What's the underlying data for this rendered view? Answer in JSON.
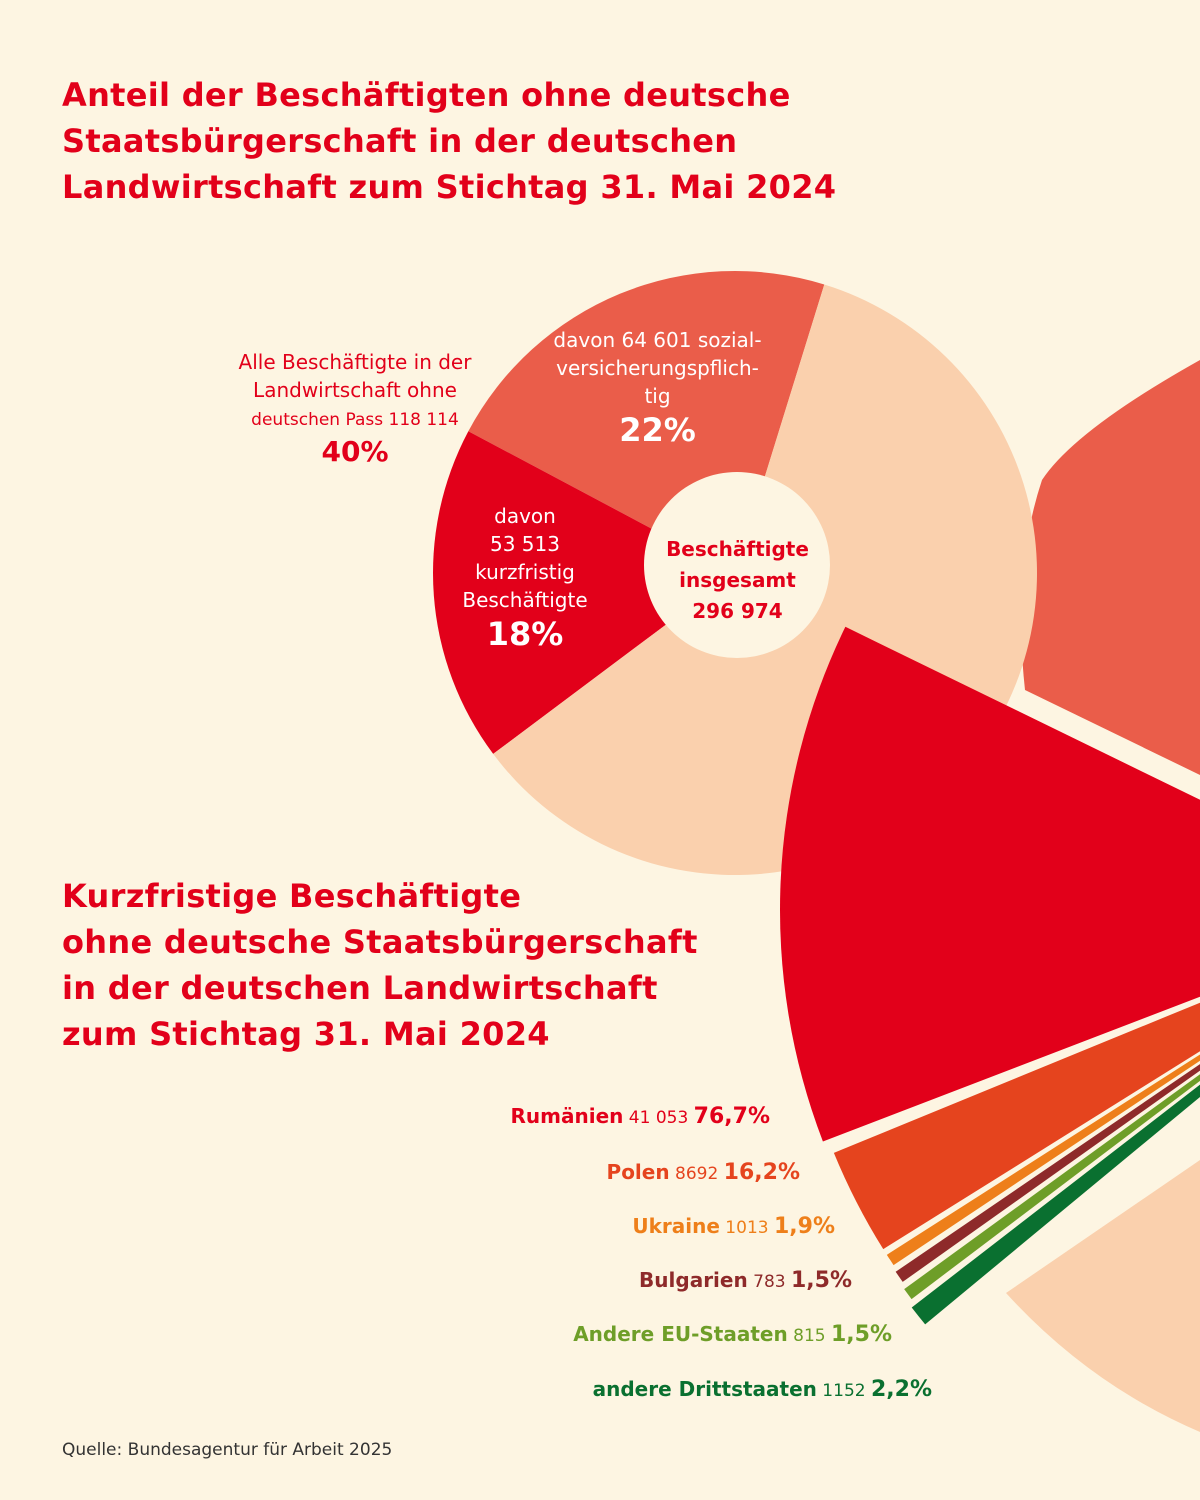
{
  "title_top": [
    "Anteil der Beschäftigten ohne deutsche",
    "Staatsbürgerschaft in der deutschen",
    "Landwirtschaft zum Stichtag 31. Mai 2024"
  ],
  "title_bottom": [
    "Kurzfristige Beschäftigte",
    "ohne deutsche Staatsbürgerschaft",
    "in der deutschen Landwirtschaft",
    "zum Stichtag 31. Mai 2024"
  ],
  "source": "Quelle: Bundesagentur für Arbeit 2025",
  "colors": {
    "background": "#FDF5E2",
    "red": "#E2001A",
    "coral": "#EA5D4A",
    "peach": "#FAD0AD"
  },
  "chart_data": [
    {
      "type": "pie",
      "center_label": [
        "Beschäftigte",
        "insgesamt",
        "296 974"
      ],
      "outside_label": {
        "lines": [
          "Alle Beschäftigte in der",
          "Landwirtschaft ohne",
          "deutschen Pass 118 114"
        ],
        "percent": "40%",
        "value": 40
      },
      "slices": [
        {
          "label": [
            "davon 64 601 sozial-",
            "versicherungspflich-",
            "tig"
          ],
          "percent": "22%",
          "value": 22,
          "color": "#EA5D4A"
        },
        {
          "label": [
            "davon",
            "53 513",
            "kurzfristig",
            "Beschäftigte"
          ],
          "percent": "18%",
          "value": 18,
          "color": "#E2001A"
        },
        {
          "label": [],
          "percent": "",
          "value": 60,
          "color": "#FAD0AD"
        }
      ]
    },
    {
      "type": "pie",
      "slices": [
        {
          "name": "Rumänien",
          "count": "41 053",
          "percent": "76,7%",
          "value": 76.7,
          "color": "#E2001A"
        },
        {
          "name": "Polen",
          "count": "8692",
          "percent": "16,2%",
          "value": 16.2,
          "color": "#E5441E"
        },
        {
          "name": "Ukraine",
          "count": "1013",
          "percent": "1,9%",
          "value": 1.9,
          "color": "#EE7F1A"
        },
        {
          "name": "Bulgarien",
          "count": "783",
          "percent": "1,5%",
          "value": 1.5,
          "color": "#8E2A2A"
        },
        {
          "name": "Andere EU-Staaten",
          "count": "815",
          "percent": "1,5%",
          "value": 1.5,
          "color": "#6E9E28"
        },
        {
          "name": "andere Drittstaaten",
          "count": "1152",
          "percent": "2,2%",
          "value": 2.2,
          "color": "#0A7030"
        }
      ]
    }
  ]
}
